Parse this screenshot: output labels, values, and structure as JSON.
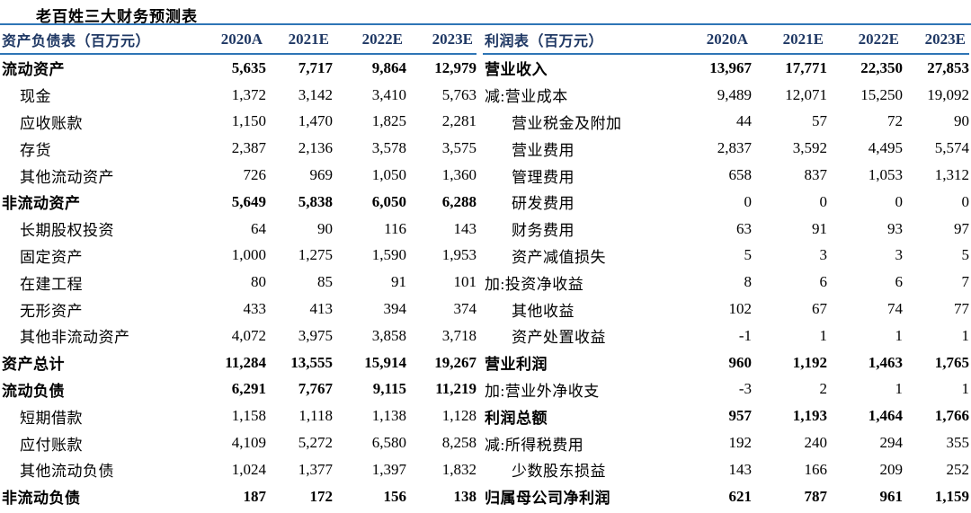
{
  "title": "老百姓三大财务预测表",
  "colors": {
    "rule_line_blue": "#2E75B6",
    "header_text_navy": "#1F3864",
    "body_text": "#000000",
    "background": "#FFFFFF"
  },
  "columns": [
    "2020A",
    "2021E",
    "2022E",
    "2023E"
  ],
  "balance_sheet": {
    "header_label": "资产负债表（百万元）",
    "rows": [
      {
        "label": "流动资产",
        "bold": true,
        "indent": 0,
        "values": [
          "5,635",
          "7,717",
          "9,864",
          "12,979"
        ]
      },
      {
        "label": "现金",
        "bold": false,
        "indent": 1,
        "values": [
          "1,372",
          "3,142",
          "3,410",
          "5,763"
        ]
      },
      {
        "label": "应收账款",
        "bold": false,
        "indent": 1,
        "values": [
          "1,150",
          "1,470",
          "1,825",
          "2,281"
        ]
      },
      {
        "label": "存货",
        "bold": false,
        "indent": 1,
        "values": [
          "2,387",
          "2,136",
          "3,578",
          "3,575"
        ]
      },
      {
        "label": "其他流动资产",
        "bold": false,
        "indent": 1,
        "values": [
          "726",
          "969",
          "1,050",
          "1,360"
        ]
      },
      {
        "label": "非流动资产",
        "bold": true,
        "indent": 0,
        "values": [
          "5,649",
          "5,838",
          "6,050",
          "6,288"
        ]
      },
      {
        "label": "长期股权投资",
        "bold": false,
        "indent": 1,
        "values": [
          "64",
          "90",
          "116",
          "143"
        ]
      },
      {
        "label": "固定资产",
        "bold": false,
        "indent": 1,
        "values": [
          "1,000",
          "1,275",
          "1,590",
          "1,953"
        ]
      },
      {
        "label": "在建工程",
        "bold": false,
        "indent": 1,
        "values": [
          "80",
          "85",
          "91",
          "101"
        ]
      },
      {
        "label": "无形资产",
        "bold": false,
        "indent": 1,
        "values": [
          "433",
          "413",
          "394",
          "374"
        ]
      },
      {
        "label": "其他非流动资产",
        "bold": false,
        "indent": 1,
        "values": [
          "4,072",
          "3,975",
          "3,858",
          "3,718"
        ]
      },
      {
        "label": "资产总计",
        "bold": true,
        "indent": 0,
        "values": [
          "11,284",
          "13,555",
          "15,914",
          "19,267"
        ]
      },
      {
        "label": "流动负债",
        "bold": true,
        "indent": 0,
        "values": [
          "6,291",
          "7,767",
          "9,115",
          "11,219"
        ]
      },
      {
        "label": "短期借款",
        "bold": false,
        "indent": 1,
        "values": [
          "1,158",
          "1,118",
          "1,138",
          "1,128"
        ]
      },
      {
        "label": "应付账款",
        "bold": false,
        "indent": 1,
        "values": [
          "4,109",
          "5,272",
          "6,580",
          "8,258"
        ]
      },
      {
        "label": "其他流动负债",
        "bold": false,
        "indent": 1,
        "values": [
          "1,024",
          "1,377",
          "1,397",
          "1,832"
        ]
      },
      {
        "label": "非流动负债",
        "bold": true,
        "indent": 0,
        "values": [
          "187",
          "172",
          "156",
          "138"
        ]
      }
    ]
  },
  "income_statement": {
    "header_label": "利润表（百万元）",
    "rows": [
      {
        "label": "营业收入",
        "bold": true,
        "indent": 0,
        "values": [
          "13,967",
          "17,771",
          "22,350",
          "27,853"
        ]
      },
      {
        "label": "减:营业成本",
        "bold": false,
        "indent": 0,
        "values": [
          "9,489",
          "12,071",
          "15,250",
          "19,092"
        ]
      },
      {
        "label": "营业税金及附加",
        "bold": false,
        "indent": 1,
        "values": [
          "44",
          "57",
          "72",
          "90"
        ]
      },
      {
        "label": "营业费用",
        "bold": false,
        "indent": 1,
        "values": [
          "2,837",
          "3,592",
          "4,495",
          "5,574"
        ]
      },
      {
        "label": "管理费用",
        "bold": false,
        "indent": 1,
        "values": [
          "658",
          "837",
          "1,053",
          "1,312"
        ]
      },
      {
        "label": "研发费用",
        "bold": false,
        "indent": 1,
        "values": [
          "0",
          "0",
          "0",
          "0"
        ]
      },
      {
        "label": "财务费用",
        "bold": false,
        "indent": 1,
        "values": [
          "63",
          "91",
          "93",
          "97"
        ]
      },
      {
        "label": "资产减值损失",
        "bold": false,
        "indent": 1,
        "values": [
          "5",
          "3",
          "3",
          "5"
        ]
      },
      {
        "label": "加:投资净收益",
        "bold": false,
        "indent": 0,
        "values": [
          "8",
          "6",
          "6",
          "7"
        ]
      },
      {
        "label": "其他收益",
        "bold": false,
        "indent": 1,
        "values": [
          "102",
          "67",
          "74",
          "77"
        ]
      },
      {
        "label": "资产处置收益",
        "bold": false,
        "indent": 1,
        "values": [
          "-1",
          "1",
          "1",
          "1"
        ]
      },
      {
        "label": "营业利润",
        "bold": true,
        "indent": 0,
        "values": [
          "960",
          "1,192",
          "1,463",
          "1,765"
        ]
      },
      {
        "label": "加:营业外净收支",
        "bold": false,
        "indent": 0,
        "values": [
          "-3",
          "2",
          "1",
          "1"
        ]
      },
      {
        "label": "利润总额",
        "bold": true,
        "indent": 0,
        "values": [
          "957",
          "1,193",
          "1,464",
          "1,766"
        ]
      },
      {
        "label": "减:所得税费用",
        "bold": false,
        "indent": 0,
        "values": [
          "192",
          "240",
          "294",
          "355"
        ]
      },
      {
        "label": "少数股东损益",
        "bold": false,
        "indent": 1,
        "values": [
          "143",
          "166",
          "209",
          "252"
        ]
      },
      {
        "label": "归属母公司净利润",
        "bold": true,
        "indent": 0,
        "values": [
          "621",
          "787",
          "961",
          "1,159"
        ]
      }
    ]
  }
}
